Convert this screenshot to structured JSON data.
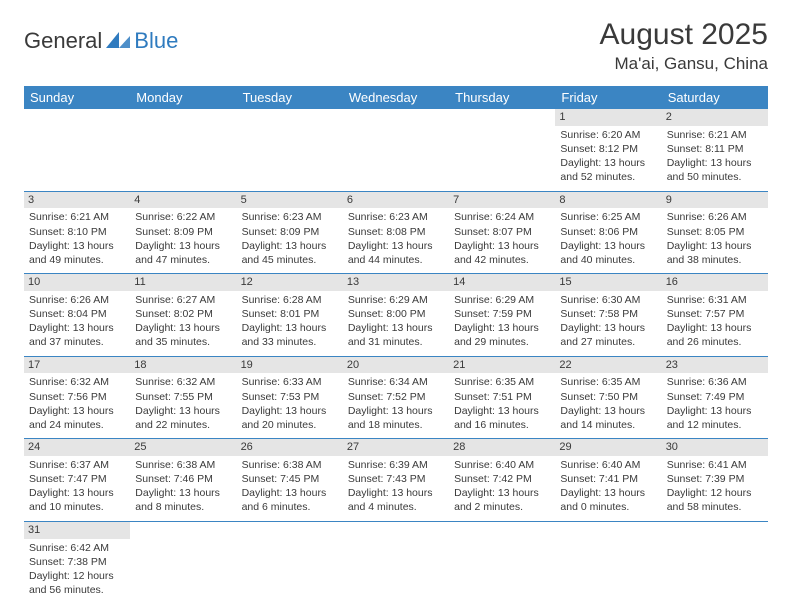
{
  "logo": {
    "part1": "General",
    "part2": "Blue"
  },
  "header": {
    "title": "August 2025",
    "location": "Ma'ai, Gansu, China"
  },
  "colors": {
    "header_bg": "#3b85c3",
    "header_text": "#ffffff",
    "daynum_bg": "#e5e5e5",
    "rule": "#3b85c3",
    "logo_blue": "#2f7bbf"
  },
  "weekdays": [
    "Sunday",
    "Monday",
    "Tuesday",
    "Wednesday",
    "Thursday",
    "Friday",
    "Saturday"
  ],
  "weeks": [
    [
      {
        "day": "",
        "sunrise": "",
        "sunset": "",
        "daylight": "",
        "empty": true
      },
      {
        "day": "",
        "sunrise": "",
        "sunset": "",
        "daylight": "",
        "empty": true
      },
      {
        "day": "",
        "sunrise": "",
        "sunset": "",
        "daylight": "",
        "empty": true
      },
      {
        "day": "",
        "sunrise": "",
        "sunset": "",
        "daylight": "",
        "empty": true
      },
      {
        "day": "",
        "sunrise": "",
        "sunset": "",
        "daylight": "",
        "empty": true
      },
      {
        "day": "1",
        "sunrise": "Sunrise: 6:20 AM",
        "sunset": "Sunset: 8:12 PM",
        "daylight": "Daylight: 13 hours and 52 minutes."
      },
      {
        "day": "2",
        "sunrise": "Sunrise: 6:21 AM",
        "sunset": "Sunset: 8:11 PM",
        "daylight": "Daylight: 13 hours and 50 minutes."
      }
    ],
    [
      {
        "day": "3",
        "sunrise": "Sunrise: 6:21 AM",
        "sunset": "Sunset: 8:10 PM",
        "daylight": "Daylight: 13 hours and 49 minutes."
      },
      {
        "day": "4",
        "sunrise": "Sunrise: 6:22 AM",
        "sunset": "Sunset: 8:09 PM",
        "daylight": "Daylight: 13 hours and 47 minutes."
      },
      {
        "day": "5",
        "sunrise": "Sunrise: 6:23 AM",
        "sunset": "Sunset: 8:09 PM",
        "daylight": "Daylight: 13 hours and 45 minutes."
      },
      {
        "day": "6",
        "sunrise": "Sunrise: 6:23 AM",
        "sunset": "Sunset: 8:08 PM",
        "daylight": "Daylight: 13 hours and 44 minutes."
      },
      {
        "day": "7",
        "sunrise": "Sunrise: 6:24 AM",
        "sunset": "Sunset: 8:07 PM",
        "daylight": "Daylight: 13 hours and 42 minutes."
      },
      {
        "day": "8",
        "sunrise": "Sunrise: 6:25 AM",
        "sunset": "Sunset: 8:06 PM",
        "daylight": "Daylight: 13 hours and 40 minutes."
      },
      {
        "day": "9",
        "sunrise": "Sunrise: 6:26 AM",
        "sunset": "Sunset: 8:05 PM",
        "daylight": "Daylight: 13 hours and 38 minutes."
      }
    ],
    [
      {
        "day": "10",
        "sunrise": "Sunrise: 6:26 AM",
        "sunset": "Sunset: 8:04 PM",
        "daylight": "Daylight: 13 hours and 37 minutes."
      },
      {
        "day": "11",
        "sunrise": "Sunrise: 6:27 AM",
        "sunset": "Sunset: 8:02 PM",
        "daylight": "Daylight: 13 hours and 35 minutes."
      },
      {
        "day": "12",
        "sunrise": "Sunrise: 6:28 AM",
        "sunset": "Sunset: 8:01 PM",
        "daylight": "Daylight: 13 hours and 33 minutes."
      },
      {
        "day": "13",
        "sunrise": "Sunrise: 6:29 AM",
        "sunset": "Sunset: 8:00 PM",
        "daylight": "Daylight: 13 hours and 31 minutes."
      },
      {
        "day": "14",
        "sunrise": "Sunrise: 6:29 AM",
        "sunset": "Sunset: 7:59 PM",
        "daylight": "Daylight: 13 hours and 29 minutes."
      },
      {
        "day": "15",
        "sunrise": "Sunrise: 6:30 AM",
        "sunset": "Sunset: 7:58 PM",
        "daylight": "Daylight: 13 hours and 27 minutes."
      },
      {
        "day": "16",
        "sunrise": "Sunrise: 6:31 AM",
        "sunset": "Sunset: 7:57 PM",
        "daylight": "Daylight: 13 hours and 26 minutes."
      }
    ],
    [
      {
        "day": "17",
        "sunrise": "Sunrise: 6:32 AM",
        "sunset": "Sunset: 7:56 PM",
        "daylight": "Daylight: 13 hours and 24 minutes."
      },
      {
        "day": "18",
        "sunrise": "Sunrise: 6:32 AM",
        "sunset": "Sunset: 7:55 PM",
        "daylight": "Daylight: 13 hours and 22 minutes."
      },
      {
        "day": "19",
        "sunrise": "Sunrise: 6:33 AM",
        "sunset": "Sunset: 7:53 PM",
        "daylight": "Daylight: 13 hours and 20 minutes."
      },
      {
        "day": "20",
        "sunrise": "Sunrise: 6:34 AM",
        "sunset": "Sunset: 7:52 PM",
        "daylight": "Daylight: 13 hours and 18 minutes."
      },
      {
        "day": "21",
        "sunrise": "Sunrise: 6:35 AM",
        "sunset": "Sunset: 7:51 PM",
        "daylight": "Daylight: 13 hours and 16 minutes."
      },
      {
        "day": "22",
        "sunrise": "Sunrise: 6:35 AM",
        "sunset": "Sunset: 7:50 PM",
        "daylight": "Daylight: 13 hours and 14 minutes."
      },
      {
        "day": "23",
        "sunrise": "Sunrise: 6:36 AM",
        "sunset": "Sunset: 7:49 PM",
        "daylight": "Daylight: 13 hours and 12 minutes."
      }
    ],
    [
      {
        "day": "24",
        "sunrise": "Sunrise: 6:37 AM",
        "sunset": "Sunset: 7:47 PM",
        "daylight": "Daylight: 13 hours and 10 minutes."
      },
      {
        "day": "25",
        "sunrise": "Sunrise: 6:38 AM",
        "sunset": "Sunset: 7:46 PM",
        "daylight": "Daylight: 13 hours and 8 minutes."
      },
      {
        "day": "26",
        "sunrise": "Sunrise: 6:38 AM",
        "sunset": "Sunset: 7:45 PM",
        "daylight": "Daylight: 13 hours and 6 minutes."
      },
      {
        "day": "27",
        "sunrise": "Sunrise: 6:39 AM",
        "sunset": "Sunset: 7:43 PM",
        "daylight": "Daylight: 13 hours and 4 minutes."
      },
      {
        "day": "28",
        "sunrise": "Sunrise: 6:40 AM",
        "sunset": "Sunset: 7:42 PM",
        "daylight": "Daylight: 13 hours and 2 minutes."
      },
      {
        "day": "29",
        "sunrise": "Sunrise: 6:40 AM",
        "sunset": "Sunset: 7:41 PM",
        "daylight": "Daylight: 13 hours and 0 minutes."
      },
      {
        "day": "30",
        "sunrise": "Sunrise: 6:41 AM",
        "sunset": "Sunset: 7:39 PM",
        "daylight": "Daylight: 12 hours and 58 minutes."
      }
    ],
    [
      {
        "day": "31",
        "sunrise": "Sunrise: 6:42 AM",
        "sunset": "Sunset: 7:38 PM",
        "daylight": "Daylight: 12 hours and 56 minutes."
      },
      {
        "day": "",
        "sunrise": "",
        "sunset": "",
        "daylight": "",
        "empty": true
      },
      {
        "day": "",
        "sunrise": "",
        "sunset": "",
        "daylight": "",
        "empty": true
      },
      {
        "day": "",
        "sunrise": "",
        "sunset": "",
        "daylight": "",
        "empty": true
      },
      {
        "day": "",
        "sunrise": "",
        "sunset": "",
        "daylight": "",
        "empty": true
      },
      {
        "day": "",
        "sunrise": "",
        "sunset": "",
        "daylight": "",
        "empty": true
      },
      {
        "day": "",
        "sunrise": "",
        "sunset": "",
        "daylight": "",
        "empty": true
      }
    ]
  ]
}
